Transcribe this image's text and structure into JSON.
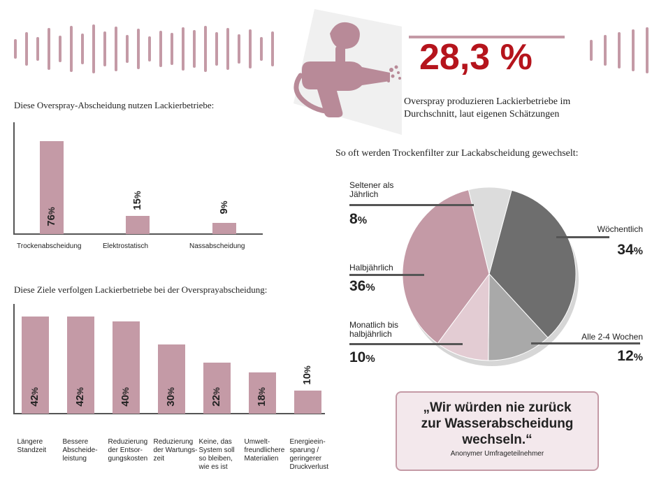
{
  "headline": {
    "value": "28,3 %",
    "caption_line1": "Overspray produzieren Lackierbetriebe im",
    "caption_line2": "Durchschnitt, laut eigenen Schätzungen",
    "color": "#b5141c"
  },
  "illustration": {
    "icon": "spray-gun-icon"
  },
  "colors": {
    "accent": "#c49aa6",
    "axis": "#555555"
  },
  "chart_data": [
    {
      "type": "bar",
      "title": "Diese Overspray-Abscheidung nutzen Lackierbetriebe:",
      "categories": [
        "Trockenabscheidung",
        "Elektrostatisch",
        "Nassabscheidung"
      ],
      "values": [
        76,
        15,
        9
      ],
      "value_labels": [
        "76",
        "15",
        "9"
      ],
      "unit": "%",
      "ylim": [
        0,
        80
      ]
    },
    {
      "type": "bar",
      "title": "Diese Ziele verfolgen Lackierbetriebe bei der Oversprayabscheidung:",
      "categories": [
        [
          "Längere",
          "Standzeit"
        ],
        [
          "Bessere",
          "Abscheide-",
          "leistung"
        ],
        [
          "Reduzierung",
          "der Entsor-",
          "gungskosten"
        ],
        [
          "Reduzierung",
          "der Wartungs-",
          "zeit"
        ],
        [
          "Keine, das",
          "System soll",
          "so bleiben,",
          "wie es ist"
        ],
        [
          "Umwelt-",
          "freundlichere",
          "Materialien"
        ],
        [
          "Energieein-",
          "sparung /",
          "geringerer",
          "Druckverlust"
        ]
      ],
      "values": [
        42,
        42,
        40,
        30,
        22,
        18,
        10
      ],
      "value_labels": [
        "42",
        "42",
        "40",
        "30",
        "22",
        "18",
        "10"
      ],
      "unit": "%",
      "ylim": [
        0,
        43
      ]
    },
    {
      "type": "pie",
      "title": "So oft werden Trockenfilter zur Lackabscheidung gewechselt:",
      "slices": [
        {
          "label": [
            "Wöchentlich"
          ],
          "value": 34,
          "value_label": "34",
          "color": "#6e6e6e"
        },
        {
          "label": [
            "Alle 2-4 Wochen"
          ],
          "value": 12,
          "value_label": "12",
          "color": "#a9a9a9"
        },
        {
          "label": [
            "Monatlich bis",
            "halbjährlich"
          ],
          "value": 10,
          "value_label": "10",
          "color": "#e3ccd3"
        },
        {
          "label": [
            "Halbjährlich"
          ],
          "value": 36,
          "value_label": "36",
          "color": "#c49aa6"
        },
        {
          "label": [
            "Seltener als",
            "Jährlich"
          ],
          "value": 8,
          "value_label": "8",
          "color": "#dcdcdc"
        }
      ],
      "unit": "%"
    }
  ],
  "quote": {
    "line1": "„Wir würden nie zurück",
    "line2": "zur Wasserabscheidung",
    "line3": "wechseln.“",
    "author": "Anonymer Umfrageteilnehmer"
  }
}
